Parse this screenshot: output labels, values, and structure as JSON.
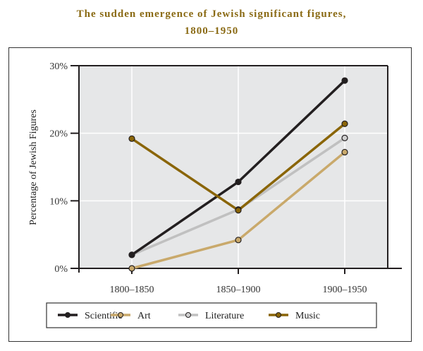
{
  "chart_data": {
    "type": "line",
    "title": "The sudden emergence of Jewish significant figures,",
    "subtitle": "1800–1950",
    "xlabel": "",
    "ylabel": "Percentage of Jewish Figures",
    "categories": [
      "1800–1850",
      "1850–1900",
      "1900–1950"
    ],
    "yticks": [
      "0%",
      "10%",
      "20%",
      "30%"
    ],
    "ytick_values": [
      0,
      10,
      20,
      30
    ],
    "ylim": [
      0,
      30
    ],
    "grid": true,
    "legend_position": "bottom",
    "series": [
      {
        "name": "Scientific",
        "values": [
          2.0,
          12.8,
          27.8
        ],
        "color": "#231f20",
        "marker_fill": "#231f20"
      },
      {
        "name": "Art",
        "values": [
          0.0,
          4.2,
          17.2
        ],
        "color": "#c9a96b",
        "marker_fill": "#c9a96b"
      },
      {
        "name": "Literature",
        "values": [
          2.0,
          8.7,
          19.3
        ],
        "color": "#c0c0c0",
        "marker_fill": "#d0d0d0"
      },
      {
        "name": "Music",
        "values": [
          19.2,
          8.6,
          21.4
        ],
        "color": "#8a6508",
        "marker_fill": "#8a6508"
      }
    ]
  },
  "colors": {
    "title": "#8a6a14",
    "plot_background": "#e6e7e8",
    "grid": "#ffffff",
    "axis": "#231f20"
  }
}
